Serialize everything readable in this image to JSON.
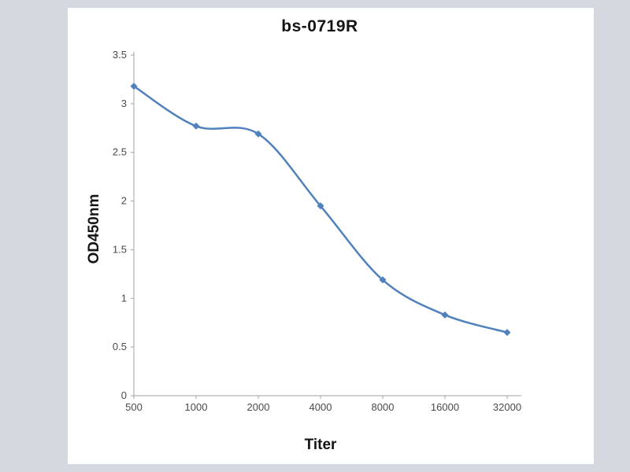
{
  "chart_data": {
    "type": "line",
    "title": "bs-0719R",
    "xlabel": "Titer",
    "ylabel": "OD450nm",
    "categories": [
      "500",
      "1000",
      "2000",
      "4000",
      "8000",
      "16000",
      "32000"
    ],
    "values": [
      3.18,
      2.77,
      2.69,
      1.95,
      1.19,
      0.83,
      0.65
    ],
    "ylim": [
      0,
      3.5
    ],
    "ytick_step": 0.5,
    "yticks": [
      "0",
      "0.5",
      "1",
      "1.5",
      "2",
      "2.5",
      "3",
      "3.5"
    ],
    "grid": false,
    "legend": "none",
    "line_color": "#4f81bd",
    "marker": "diamond",
    "smooth": true
  },
  "colors": {
    "page_bg": "#d3d7de",
    "panel_bg": "#ffffff",
    "axis": "#a3a3a3",
    "tick_text": "#4a4a4a",
    "title_text": "#141414",
    "line": "#4f81bd"
  }
}
